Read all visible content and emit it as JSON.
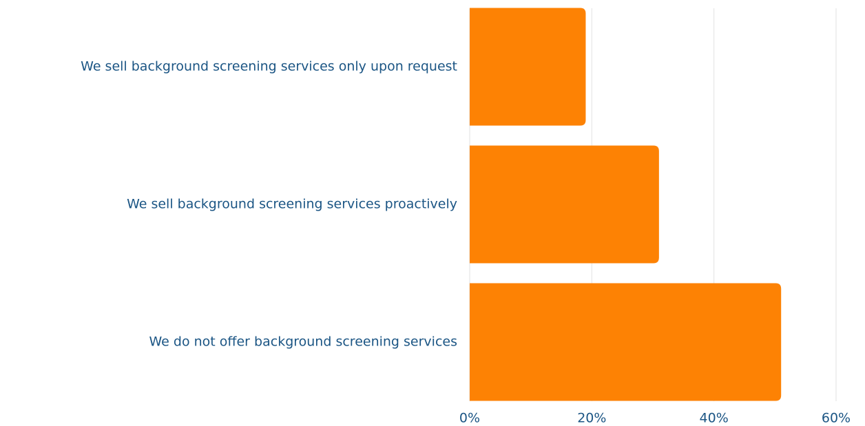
{
  "chart_data": {
    "type": "bar",
    "orientation": "horizontal",
    "categories": [
      "We sell background screening services only upon request",
      "We sell background screening services proactively",
      "We do not offer background screening services"
    ],
    "values": [
      19,
      31,
      51
    ],
    "color": "#fd8204",
    "xlim": [
      0,
      60
    ],
    "xticks": [
      {
        "value": 0,
        "label": "0%"
      },
      {
        "value": 20,
        "label": "20%"
      },
      {
        "value": 40,
        "label": "40%"
      },
      {
        "value": 60,
        "label": "60%"
      }
    ],
    "grid": true
  }
}
